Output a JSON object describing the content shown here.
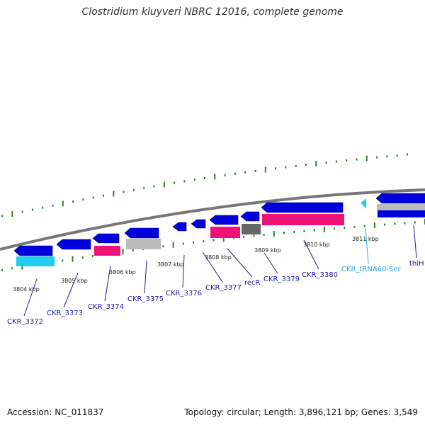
{
  "title": "Clostridium kluyveri NBRC 12016, complete genome",
  "footer": {
    "accession": "Accession: NC_011837",
    "summary": "Topology: circular; Length: 3,896,121 bp; Genes: 3,549"
  },
  "colors": {
    "cds_blue": "#0000dd",
    "rrna_pink": "#ee1177",
    "trna_cyan": "#22ccee",
    "misc_gray": "#bbbbbb",
    "dark_gray": "#666666",
    "label_blue": "#1a1aaa",
    "label_cyan": "#22aadd",
    "tick_green": "#228822",
    "backbone": "#777777"
  },
  "kbp_ticks": [
    {
      "label": "3804 kbp"
    },
    {
      "label": "3805 kbp"
    },
    {
      "label": "3806 kbp"
    },
    {
      "label": "3807 kbp"
    },
    {
      "label": "3808 kbp"
    },
    {
      "label": "3809 kbp"
    },
    {
      "label": "3810 kbp"
    },
    {
      "label": "3811 kbp"
    }
  ],
  "gene_labels": [
    {
      "name": "CKR_3372",
      "color": "label_blue"
    },
    {
      "name": "CKR_3373",
      "color": "label_blue"
    },
    {
      "name": "CKR_3374",
      "color": "label_blue"
    },
    {
      "name": "CKR_3375",
      "color": "label_blue"
    },
    {
      "name": "CKR_3376",
      "color": "label_blue"
    },
    {
      "name": "CKR_3377",
      "color": "label_blue"
    },
    {
      "name": "recR",
      "color": "label_blue"
    },
    {
      "name": "CKR_3379",
      "color": "label_blue"
    },
    {
      "name": "CKR_3380",
      "color": "label_blue"
    },
    {
      "name": "CKR_tRNA60-Ser",
      "color": "label_cyan"
    },
    {
      "name": "thiH",
      "color": "label_blue"
    }
  ]
}
